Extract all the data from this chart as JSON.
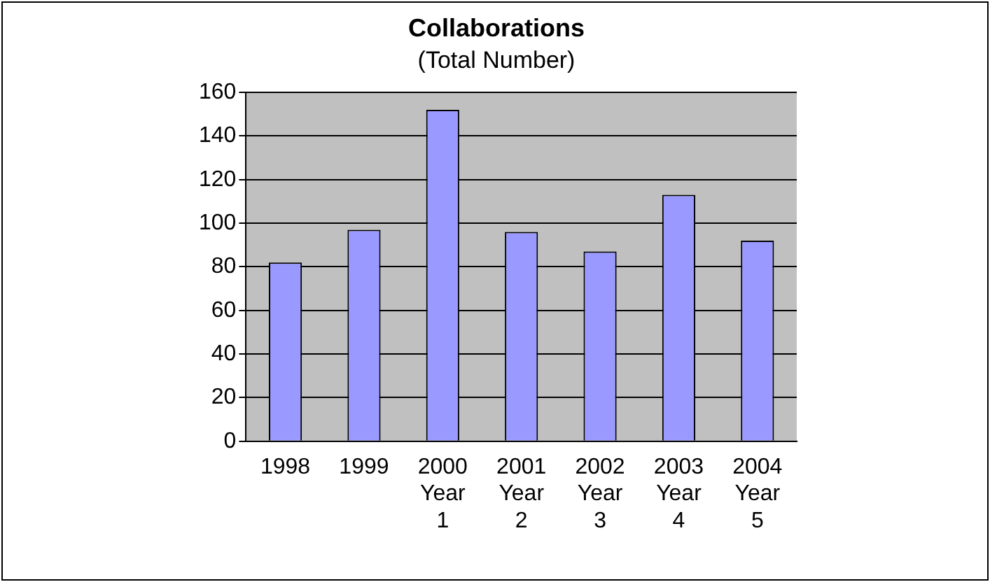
{
  "chart_data": {
    "type": "bar",
    "title": "Collaborations",
    "subtitle": "(Total Number)",
    "categories": [
      "1998",
      "1999",
      "2000\nYear\n1",
      "2001\nYear\n2",
      "2002\nYear\n3",
      "2003\nYear\n4",
      "2004\nYear\n5"
    ],
    "values": [
      82,
      97,
      152,
      96,
      87,
      113,
      92
    ],
    "color": "#9999ff",
    "ylim": [
      0,
      160
    ],
    "yticks": [
      0,
      20,
      40,
      60,
      80,
      100,
      120,
      140,
      160
    ],
    "grid": "y",
    "legend": false
  }
}
